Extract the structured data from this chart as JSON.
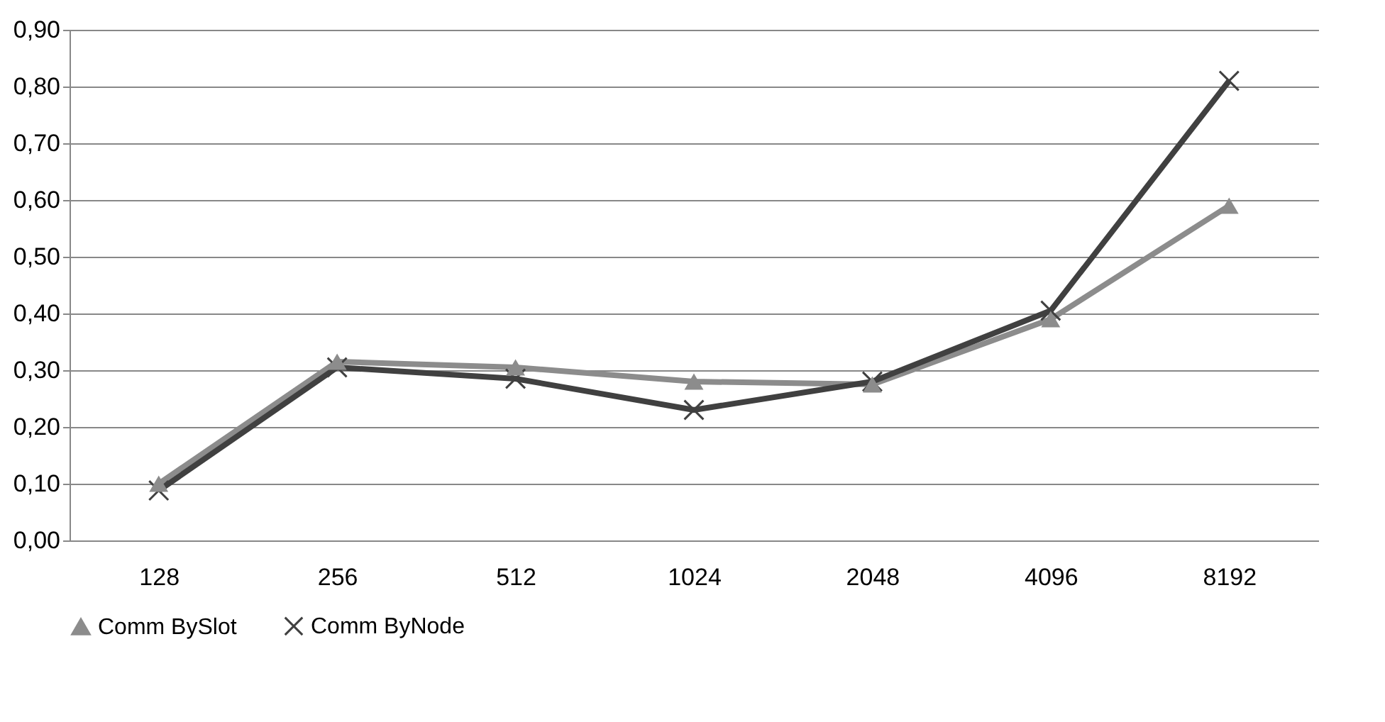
{
  "chart_data": {
    "type": "line",
    "categories": [
      "128",
      "256",
      "512",
      "1024",
      "2048",
      "4096",
      "8192"
    ],
    "series": [
      {
        "name": "Comm BySlot",
        "color": "#8c8c8c",
        "marker": "triangle",
        "values": [
          0.1,
          0.315,
          0.305,
          0.28,
          0.275,
          0.39,
          0.59
        ]
      },
      {
        "name": "Comm ByNode",
        "color": "#404040",
        "marker": "cross",
        "values": [
          0.088,
          0.305,
          0.285,
          0.23,
          0.28,
          0.405,
          0.81
        ]
      }
    ],
    "ylim": [
      0,
      0.9
    ],
    "yticks": [
      {
        "value": 0,
        "label": "0,00"
      },
      {
        "value": 0.1,
        "label": "0,10"
      },
      {
        "value": 0.2,
        "label": "0,20"
      },
      {
        "value": 0.3,
        "label": "0,30"
      },
      {
        "value": 0.4,
        "label": "0,40"
      },
      {
        "value": 0.5,
        "label": "0,50"
      },
      {
        "value": 0.6,
        "label": "0,60"
      },
      {
        "value": 0.7,
        "label": "0,70"
      },
      {
        "value": 0.8,
        "label": "0,80"
      },
      {
        "value": 0.9,
        "label": "0,90"
      }
    ],
    "grid": "y",
    "legend": "bottom",
    "line_style": "solid"
  }
}
